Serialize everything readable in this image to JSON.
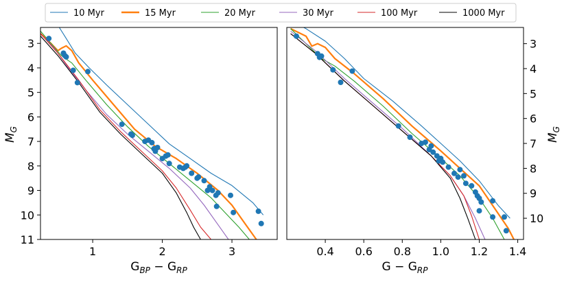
{
  "legend": {
    "placement": "top-center",
    "entries": [
      {
        "label": "10 Myr",
        "color": "#1f77b4",
        "emphasis": false
      },
      {
        "label": "15 Myr",
        "color": "#ff7f0e",
        "emphasis": true
      },
      {
        "label": "20 Myr",
        "color": "#2ca02c",
        "emphasis": false
      },
      {
        "label": "30 Myr",
        "color": "#9467bd",
        "emphasis": false
      },
      {
        "label": "100 Myr",
        "color": "#d62728",
        "emphasis": false
      },
      {
        "label": "1000 Myr",
        "color": "#000000",
        "emphasis": false
      }
    ]
  },
  "chart_data": [
    {
      "type": "line",
      "panel": "left",
      "xlabel": "G_BP − G_RP",
      "ylabel": "M_G",
      "xlim": [
        0.25,
        3.65
      ],
      "ylim": [
        11,
        2.35
      ],
      "y_inverted": true,
      "x_ticks": [
        "1",
        "2",
        "3"
      ],
      "x_tick_values": [
        1,
        2,
        3
      ],
      "y_ticks": [
        "3",
        "4",
        "5",
        "6",
        "7",
        "8",
        "9",
        "10",
        "11"
      ],
      "y_tick_values": [
        3,
        4,
        5,
        6,
        7,
        8,
        9,
        10,
        11
      ],
      "y_axis_side": "left",
      "series": [
        {
          "name": "10 Myr",
          "x": [
            0.52,
            0.62,
            0.75,
            0.95,
            1.2,
            1.5,
            1.8,
            2.1,
            2.4,
            2.7,
            3.0,
            3.3,
            3.45
          ],
          "y": [
            2.35,
            2.8,
            3.4,
            4.0,
            4.7,
            5.5,
            6.3,
            7.1,
            7.7,
            8.3,
            8.8,
            9.5,
            10.0
          ]
        },
        {
          "name": "15 Myr",
          "x": [
            0.25,
            0.4,
            0.5,
            0.55,
            0.62,
            0.7,
            0.8,
            1.0,
            1.3,
            1.6,
            1.9,
            2.2,
            2.5,
            2.8,
            3.0,
            3.2,
            3.35
          ],
          "y": [
            2.6,
            3.0,
            3.3,
            3.2,
            3.1,
            3.3,
            3.8,
            4.5,
            5.5,
            6.5,
            7.2,
            7.7,
            8.3,
            9.0,
            9.6,
            10.4,
            11.0
          ]
        },
        {
          "name": "20 Myr",
          "x": [
            0.25,
            0.4,
            0.55,
            0.7,
            0.9,
            1.2,
            1.5,
            1.8,
            2.1,
            2.4,
            2.7,
            2.9,
            3.1,
            3.25
          ],
          "y": [
            2.5,
            3.0,
            3.5,
            3.8,
            4.5,
            5.5,
            6.4,
            7.2,
            7.9,
            8.6,
            9.3,
            9.9,
            10.5,
            11.0
          ]
        },
        {
          "name": "30 Myr",
          "x": [
            0.25,
            0.45,
            0.65,
            0.9,
            1.2,
            1.5,
            1.8,
            2.1,
            2.4,
            2.6,
            2.8,
            2.95
          ],
          "y": [
            2.6,
            3.2,
            4.0,
            4.9,
            5.9,
            6.7,
            7.4,
            8.1,
            8.9,
            9.6,
            10.4,
            11.0
          ]
        },
        {
          "name": "100 Myr",
          "x": [
            0.25,
            0.5,
            0.8,
            1.1,
            1.4,
            1.7,
            2.0,
            2.2,
            2.4,
            2.55,
            2.7
          ],
          "y": [
            2.6,
            3.4,
            4.5,
            5.7,
            6.6,
            7.4,
            8.2,
            8.9,
            9.8,
            10.5,
            11.0
          ]
        },
        {
          "name": "1000 Myr",
          "x": [
            0.25,
            0.5,
            0.8,
            1.1,
            1.4,
            1.7,
            2.0,
            2.2,
            2.35,
            2.45,
            2.55
          ],
          "y": [
            2.7,
            3.5,
            4.6,
            5.8,
            6.7,
            7.5,
            8.3,
            9.1,
            9.9,
            10.5,
            11.0
          ]
        }
      ],
      "points": [
        {
          "x": 0.37,
          "y": 2.8
        },
        {
          "x": 0.58,
          "y": 3.4
        },
        {
          "x": 0.6,
          "y": 3.5
        },
        {
          "x": 0.62,
          "y": 3.55
        },
        {
          "x": 0.72,
          "y": 4.1
        },
        {
          "x": 0.78,
          "y": 4.6
        },
        {
          "x": 0.93,
          "y": 4.15
        },
        {
          "x": 1.42,
          "y": 6.3
        },
        {
          "x": 1.55,
          "y": 6.7
        },
        {
          "x": 1.57,
          "y": 6.75
        },
        {
          "x": 1.75,
          "y": 7.0
        },
        {
          "x": 1.8,
          "y": 6.95
        },
        {
          "x": 1.85,
          "y": 7.05
        },
        {
          "x": 1.88,
          "y": 7.3
        },
        {
          "x": 1.9,
          "y": 7.4
        },
        {
          "x": 1.93,
          "y": 7.25
        },
        {
          "x": 2.0,
          "y": 7.7
        },
        {
          "x": 2.05,
          "y": 7.6
        },
        {
          "x": 2.08,
          "y": 7.55
        },
        {
          "x": 2.1,
          "y": 7.9
        },
        {
          "x": 2.25,
          "y": 8.05
        },
        {
          "x": 2.3,
          "y": 8.1
        },
        {
          "x": 2.33,
          "y": 8.05
        },
        {
          "x": 2.35,
          "y": 8.0
        },
        {
          "x": 2.42,
          "y": 8.3
        },
        {
          "x": 2.5,
          "y": 8.5
        },
        {
          "x": 2.52,
          "y": 8.45
        },
        {
          "x": 2.6,
          "y": 8.6
        },
        {
          "x": 2.65,
          "y": 9.0
        },
        {
          "x": 2.68,
          "y": 8.85
        },
        {
          "x": 2.72,
          "y": 9.0
        },
        {
          "x": 2.77,
          "y": 9.2
        },
        {
          "x": 2.8,
          "y": 9.1
        },
        {
          "x": 2.78,
          "y": 9.65
        },
        {
          "x": 2.98,
          "y": 9.2
        },
        {
          "x": 3.02,
          "y": 9.9
        },
        {
          "x": 3.38,
          "y": 9.85
        },
        {
          "x": 3.42,
          "y": 10.35
        }
      ]
    },
    {
      "type": "line",
      "panel": "right",
      "xlabel": "G − G_RP",
      "ylabel": "M_G",
      "xlim": [
        0.2,
        1.43
      ],
      "ylim": [
        10.85,
        2.35
      ],
      "y_inverted": true,
      "x_ticks": [
        "0.4",
        "0.6",
        "0.8",
        "1.0",
        "1.2",
        "1.4"
      ],
      "x_tick_values": [
        0.4,
        0.6,
        0.8,
        1.0,
        1.2,
        1.4
      ],
      "y_ticks": [
        "3",
        "4",
        "5",
        "6",
        "7",
        "8",
        "9",
        "10"
      ],
      "y_tick_values": [
        3,
        4,
        5,
        6,
        7,
        8,
        9,
        10
      ],
      "y_axis_side": "right",
      "series": [
        {
          "name": "10 Myr",
          "x": [
            0.2,
            0.3,
            0.4,
            0.5,
            0.6,
            0.75,
            0.9,
            1.0,
            1.1,
            1.2,
            1.3,
            1.36
          ],
          "y": [
            2.0,
            2.4,
            2.9,
            3.6,
            4.4,
            5.3,
            6.3,
            7.0,
            7.7,
            8.5,
            9.5,
            10.0
          ]
        },
        {
          "name": "15 Myr",
          "x": [
            0.22,
            0.3,
            0.33,
            0.36,
            0.4,
            0.45,
            0.55,
            0.7,
            0.85,
            1.0,
            1.1,
            1.2,
            1.28,
            1.35,
            1.38
          ],
          "y": [
            2.4,
            2.7,
            3.1,
            3.0,
            3.15,
            3.6,
            4.2,
            5.2,
            6.3,
            7.3,
            8.0,
            8.7,
            9.6,
            10.4,
            10.85
          ]
        },
        {
          "name": "20 Myr",
          "x": [
            0.22,
            0.3,
            0.38,
            0.45,
            0.55,
            0.7,
            0.85,
            1.0,
            1.1,
            1.2,
            1.27,
            1.33
          ],
          "y": [
            2.4,
            3.0,
            3.6,
            3.9,
            4.5,
            5.5,
            6.6,
            7.6,
            8.3,
            9.2,
            10.0,
            10.85
          ]
        },
        {
          "name": "30 Myr",
          "x": [
            0.22,
            0.35,
            0.5,
            0.65,
            0.8,
            0.95,
            1.05,
            1.12,
            1.18,
            1.23
          ],
          "y": [
            2.5,
            3.3,
            4.4,
            5.4,
            6.4,
            7.5,
            8.3,
            9.1,
            10.0,
            10.85
          ]
        },
        {
          "name": "100 Myr",
          "x": [
            0.22,
            0.35,
            0.5,
            0.65,
            0.8,
            0.95,
            1.05,
            1.12,
            1.16,
            1.2
          ],
          "y": [
            2.6,
            3.4,
            4.5,
            5.5,
            6.5,
            7.5,
            8.3,
            9.1,
            9.9,
            10.85
          ]
        },
        {
          "name": "1000 Myr",
          "x": [
            0.22,
            0.35,
            0.5,
            0.65,
            0.8,
            0.95,
            1.05,
            1.1,
            1.14,
            1.18
          ],
          "y": [
            2.6,
            3.4,
            4.5,
            5.5,
            6.5,
            7.5,
            8.4,
            9.2,
            10.0,
            10.85
          ]
        }
      ],
      "points": [
        {
          "x": 0.25,
          "y": 2.7
        },
        {
          "x": 0.36,
          "y": 3.4
        },
        {
          "x": 0.37,
          "y": 3.55
        },
        {
          "x": 0.38,
          "y": 3.5
        },
        {
          "x": 0.44,
          "y": 4.05
        },
        {
          "x": 0.48,
          "y": 4.55
        },
        {
          "x": 0.54,
          "y": 4.1
        },
        {
          "x": 0.78,
          "y": 6.3
        },
        {
          "x": 0.84,
          "y": 6.75
        },
        {
          "x": 0.9,
          "y": 7.0
        },
        {
          "x": 0.92,
          "y": 6.95
        },
        {
          "x": 0.94,
          "y": 7.25
        },
        {
          "x": 0.95,
          "y": 7.1
        },
        {
          "x": 0.96,
          "y": 7.35
        },
        {
          "x": 0.98,
          "y": 7.5
        },
        {
          "x": 0.99,
          "y": 7.7
        },
        {
          "x": 1.0,
          "y": 7.6
        },
        {
          "x": 1.01,
          "y": 7.75
        },
        {
          "x": 1.04,
          "y": 7.95
        },
        {
          "x": 1.07,
          "y": 8.2
        },
        {
          "x": 1.09,
          "y": 8.35
        },
        {
          "x": 1.1,
          "y": 8.05
        },
        {
          "x": 1.12,
          "y": 8.3
        },
        {
          "x": 1.13,
          "y": 8.6
        },
        {
          "x": 1.16,
          "y": 8.7
        },
        {
          "x": 1.18,
          "y": 8.95
        },
        {
          "x": 1.19,
          "y": 9.1
        },
        {
          "x": 1.2,
          "y": 9.2
        },
        {
          "x": 1.21,
          "y": 9.35
        },
        {
          "x": 1.2,
          "y": 9.7
        },
        {
          "x": 1.27,
          "y": 9.3
        },
        {
          "x": 1.27,
          "y": 9.95
        },
        {
          "x": 1.33,
          "y": 9.95
        },
        {
          "x": 1.34,
          "y": 10.5
        }
      ]
    }
  ]
}
